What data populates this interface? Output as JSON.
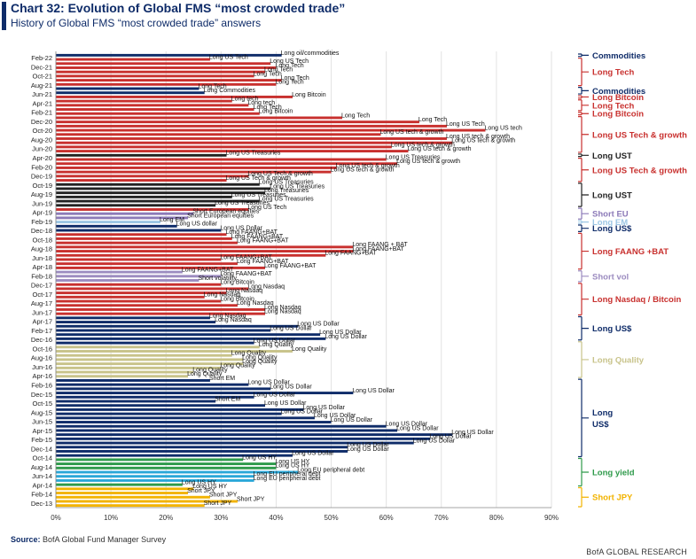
{
  "header": {
    "title": "Chart 32: Evolution of Global FMS “most crowded trade”",
    "subtitle": "History of Global FMS “most crowded trade” answers"
  },
  "footer": {
    "source_label": "Source:",
    "source_text": "BofA Global Fund Manager Survey",
    "brand": "BofA GLOBAL RESEARCH"
  },
  "colors": {
    "Commodities": "#0f2c69",
    "Long Tech": "#c8302e",
    "Long UST": "#222222",
    "Short EU": "#8c7ab8",
    "Long EM": "#9cc6e4",
    "Long US$": "#0f2c69",
    "Long FAANG+BAT": "#c8302e",
    "Short vol": "#9c8cc0",
    "Long Quality": "#c8c38a",
    "Long yield": "#2e9a4a",
    "Short JPY": "#f2b300",
    "EU debt": "#2aa7d8"
  },
  "chart_data": {
    "type": "bar",
    "orientation": "horizontal",
    "xlim": [
      0,
      90
    ],
    "x_ticks": [
      "0%",
      "10%",
      "20%",
      "30%",
      "40%",
      "50%",
      "60%",
      "70%",
      "80%",
      "90%"
    ],
    "y_ticks": [
      "Feb-22",
      "Dec-21",
      "Oct-21",
      "Aug-21",
      "Jun-21",
      "Apr-21",
      "Feb-21",
      "Dec-20",
      "Oct-20",
      "Aug-20",
      "Jun-20",
      "Apr-20",
      "Feb-20",
      "Dec-19",
      "Oct-19",
      "Aug-19",
      "Jun-19",
      "Apr-19",
      "Feb-19",
      "Dec-18",
      "Oct-18",
      "Aug-18",
      "Jun-18",
      "Apr-18",
      "Feb-18",
      "Dec-17",
      "Oct-17",
      "Aug-17",
      "Jun-17",
      "Apr-17",
      "Feb-17",
      "Dec-16",
      "Oct-16",
      "Aug-16",
      "Jun-16",
      "Apr-16",
      "Feb-16",
      "Dec-15",
      "Oct-15",
      "Aug-15",
      "Jun-15",
      "Apr-15",
      "Feb-15",
      "Dec-14",
      "Oct-14",
      "Aug-14",
      "Jun-14",
      "Apr-14",
      "Feb-14",
      "Dec-13"
    ],
    "bars": [
      {
        "v": 41,
        "l": "Long oil/commodities",
        "c": "Commodities"
      },
      {
        "v": 28,
        "l": "Long US Tech",
        "c": "Long Tech"
      },
      {
        "v": 39,
        "l": "Long US Tech",
        "c": "Long Tech"
      },
      {
        "v": 40,
        "l": "Long Tech",
        "c": "Long Tech"
      },
      {
        "v": 38,
        "l": "Long Tech",
        "c": "Long Tech"
      },
      {
        "v": 36,
        "l": "Long Tech",
        "c": "Long Tech"
      },
      {
        "v": 41,
        "l": "Long Tech",
        "c": "Long Tech"
      },
      {
        "v": 40,
        "l": "Long Tech",
        "c": "Long Tech"
      },
      {
        "v": 26,
        "l": "Long Tech",
        "c": "Commodities"
      },
      {
        "v": 27,
        "l": "Long Commodities",
        "c": "Commodities"
      },
      {
        "v": 43,
        "l": "Long Bitcoin",
        "c": "Long Tech"
      },
      {
        "v": 32,
        "l": "Long tech",
        "c": "Long Tech"
      },
      {
        "v": 35,
        "l": "Long tech",
        "c": "Long Tech"
      },
      {
        "v": 36,
        "l": "Long Tech",
        "c": "Long Tech"
      },
      {
        "v": 37,
        "l": "Long Bitcoin",
        "c": "Long Tech"
      },
      {
        "v": 52,
        "l": "Long Tech",
        "c": "Long Tech"
      },
      {
        "v": 66,
        "l": "Long Tech",
        "c": "Long Tech"
      },
      {
        "v": 71,
        "l": "Long US Tech",
        "c": "Long Tech"
      },
      {
        "v": 78,
        "l": "Long US tech",
        "c": "Long Tech"
      },
      {
        "v": 59,
        "l": "Long US tech & growth",
        "c": "Long Tech"
      },
      {
        "v": 71,
        "l": "Long US tech & growth",
        "c": "Long Tech"
      },
      {
        "v": 72,
        "l": "Long US tech & growth",
        "c": "Long Tech"
      },
      {
        "v": 61,
        "l": "Long US tech & growth",
        "c": "Long Tech"
      },
      {
        "v": 64,
        "l": "Long US tech & growth",
        "c": "Long Tech"
      },
      {
        "v": 31,
        "l": "Long US Treasuries",
        "c": "Long UST"
      },
      {
        "v": 60,
        "l": "Long US Treasuries",
        "c": "Long Tech"
      },
      {
        "v": 62,
        "l": "Long US tech & growth",
        "c": "Long Tech"
      },
      {
        "v": 51,
        "l": "Long US tech & growth",
        "c": "Long Tech"
      },
      {
        "v": 50,
        "l": "Long US tech & growth",
        "c": "Long Tech"
      },
      {
        "v": 35,
        "l": "Long US Tech & growth",
        "c": "Long Tech"
      },
      {
        "v": 31,
        "l": "Long US Tech & growth",
        "c": "Long Tech"
      },
      {
        "v": 37,
        "l": "Long US Treasuries",
        "c": "Long UST"
      },
      {
        "v": 39,
        "l": "Long US Treasuries",
        "c": "Long UST"
      },
      {
        "v": 38,
        "l": "Long Treasuries",
        "c": "Long UST"
      },
      {
        "v": 32,
        "l": "Long US Treasuries",
        "c": "Long UST"
      },
      {
        "v": 37,
        "l": "Long US Treasuries",
        "c": "Long UST"
      },
      {
        "v": 29,
        "l": "Long US Treasuries",
        "c": "Long UST"
      },
      {
        "v": 35,
        "l": "Long US Tech",
        "c": "Long Tech"
      },
      {
        "v": 25,
        "l": "Short European equities",
        "c": "Short EU"
      },
      {
        "v": 24,
        "l": "Short European equities",
        "c": "Short EU"
      },
      {
        "v": 19,
        "l": "Long EM",
        "c": "Long EM"
      },
      {
        "v": 22,
        "l": "Long US dollar",
        "c": "Long US$"
      },
      {
        "v": 30,
        "l": "Long US Dollar",
        "c": "Long US$"
      },
      {
        "v": 31,
        "l": "Long FAANG+BAT",
        "c": "Long FAANG+BAT"
      },
      {
        "v": 32,
        "l": "Long FAANG+BAT",
        "c": "Long FAANG+BAT"
      },
      {
        "v": 33,
        "l": "Long FAANG+BAT",
        "c": "Long FAANG+BAT"
      },
      {
        "v": 54,
        "l": "Long FAANG + BAT",
        "c": "Long FAANG+BAT"
      },
      {
        "v": 54,
        "l": "Long FAANG+BAT",
        "c": "Long FAANG+BAT"
      },
      {
        "v": 49,
        "l": "Long FAANG+BAT",
        "c": "Long FAANG+BAT"
      },
      {
        "v": 30,
        "l": "Long FAANG+BAT",
        "c": "Long FAANG+BAT"
      },
      {
        "v": 33,
        "l": "Long FAANG+BAT",
        "c": "Long FAANG+BAT"
      },
      {
        "v": 38,
        "l": "Long FAANG+BAT",
        "c": "Long FAANG+BAT"
      },
      {
        "v": 23,
        "l": "Long FAANG+BAT",
        "c": "Short vol"
      },
      {
        "v": 30,
        "l": "Long FAANG+BAT",
        "c": "Short vol"
      },
      {
        "v": 26,
        "l": "Short volatility",
        "c": "Short vol"
      },
      {
        "v": 30,
        "l": "Long Bitcoin",
        "c": "Long Tech"
      },
      {
        "v": 35,
        "l": "Long Nasdaq",
        "c": "Long Tech"
      },
      {
        "v": 31,
        "l": "Long Nasdaq",
        "c": "Long Tech"
      },
      {
        "v": 27,
        "l": "Long Nasdaq",
        "c": "Long Tech"
      },
      {
        "v": 30,
        "l": "Long Bitcoin",
        "c": "Long Tech"
      },
      {
        "v": 33,
        "l": "Long Nasdaq",
        "c": "Long Tech"
      },
      {
        "v": 38,
        "l": "Long Nasdaq",
        "c": "Long Tech"
      },
      {
        "v": 38,
        "l": "Long Nasdaq",
        "c": "Long Tech"
      },
      {
        "v": 28,
        "l": "Long Nasdaq",
        "c": "Long US$"
      },
      {
        "v": 29,
        "l": "Long Nasdaq",
        "c": "Long US$"
      },
      {
        "v": 44,
        "l": "Long US Dollar",
        "c": "Long US$"
      },
      {
        "v": 39,
        "l": "Long US Dollar",
        "c": "Long US$"
      },
      {
        "v": 48,
        "l": "Long US Dollar",
        "c": "Long US$"
      },
      {
        "v": 49,
        "l": "Long US Dollar",
        "c": "Long US$"
      },
      {
        "v": 36,
        "l": "Long US Dollar",
        "c": "Long US$"
      },
      {
        "v": 37,
        "l": "Long Quality",
        "c": "Long Quality"
      },
      {
        "v": 43,
        "l": "Long Quality",
        "c": "Long Quality"
      },
      {
        "v": 32,
        "l": "Long Quality",
        "c": "Long Quality"
      },
      {
        "v": 34,
        "l": "Long Quality",
        "c": "Long Quality"
      },
      {
        "v": 34,
        "l": "Long Quality",
        "c": "Long Quality"
      },
      {
        "v": 30,
        "l": "Long Quality",
        "c": "Long Quality"
      },
      {
        "v": 25,
        "l": "Long Quality",
        "c": "Long Quality"
      },
      {
        "v": 24,
        "l": "Long Quality",
        "c": "Long Quality"
      },
      {
        "v": 28,
        "l": "Short EM",
        "c": "Long US$"
      },
      {
        "v": 35,
        "l": "Long US Dollar",
        "c": "Long US$"
      },
      {
        "v": 39,
        "l": "Long US Dollar",
        "c": "Long US$"
      },
      {
        "v": 54,
        "l": "Long US Dollar",
        "c": "Long US$"
      },
      {
        "v": 36,
        "l": "Long US Dollar",
        "c": "Long US$"
      },
      {
        "v": 29,
        "l": "Short EM",
        "c": "Long US$"
      },
      {
        "v": 38,
        "l": "Long US Dollar",
        "c": "Long US$"
      },
      {
        "v": 45,
        "l": "Long US Dollar",
        "c": "Long US$"
      },
      {
        "v": 41,
        "l": "Long US Dollar",
        "c": "Long US$"
      },
      {
        "v": 47,
        "l": "Long US Dollar",
        "c": "Long US$"
      },
      {
        "v": 50,
        "l": "Long US Dollar",
        "c": "Long US$"
      },
      {
        "v": 60,
        "l": "Long US Dollar",
        "c": "Long US$"
      },
      {
        "v": 62,
        "l": "Long US Dollar",
        "c": "Long US$"
      },
      {
        "v": 72,
        "l": "Long US Dollar",
        "c": "Long US$"
      },
      {
        "v": 68,
        "l": "Long US Dollar",
        "c": "Long US$"
      },
      {
        "v": 65,
        "l": "Long US Dollar",
        "c": "Long US$"
      },
      {
        "v": 53,
        "l": "Long US Dollar",
        "c": "Long US$"
      },
      {
        "v": 53,
        "l": "Long US Dollar",
        "c": "Long US$"
      },
      {
        "v": 43,
        "l": "Long US Dollar",
        "c": "Long US$"
      },
      {
        "v": 34,
        "l": "Long US HY",
        "c": "Long yield"
      },
      {
        "v": 40,
        "l": "Long US HY",
        "c": "Long yield"
      },
      {
        "v": 40,
        "l": "Long US HY",
        "c": "Long yield"
      },
      {
        "v": 44,
        "l": "Long EU peripheral debt",
        "c": "EU debt"
      },
      {
        "v": 36,
        "l": "Long EU peripheral debt",
        "c": "EU debt"
      },
      {
        "v": 36,
        "l": "Long EU peripheral debt",
        "c": "EU debt"
      },
      {
        "v": 23,
        "l": "Long US HY",
        "c": "Long yield"
      },
      {
        "v": 25,
        "l": "Long US HY",
        "c": "Short JPY"
      },
      {
        "v": 24,
        "l": "Short JPY",
        "c": "Short JPY"
      },
      {
        "v": 28,
        "l": "Short JPY",
        "c": "Short JPY"
      },
      {
        "v": 33,
        "l": "Short JPY",
        "c": "Short JPY"
      },
      {
        "v": 27,
        "l": "Short JPY",
        "c": "Short JPY"
      }
    ],
    "legend": [
      {
        "label": "Commodities",
        "c": "Commodities",
        "from": 0,
        "to": 0
      },
      {
        "label": "Long Tech",
        "c": "Long Tech",
        "from": 1,
        "to": 7
      },
      {
        "label": "Commodities",
        "c": "Commodities",
        "from": 8,
        "to": 9
      },
      {
        "label": "Long Bitcoin",
        "c": "Long Tech",
        "from": 10,
        "to": 10
      },
      {
        "label": "Long Tech",
        "c": "Long Tech",
        "from": 11,
        "to": 13
      },
      {
        "label": "Long Bitcoin",
        "c": "Long Tech",
        "from": 14,
        "to": 14
      },
      {
        "label": "Long US Tech & growth",
        "c": "Long Tech",
        "from": 15,
        "to": 23
      },
      {
        "label": "Long UST",
        "c": "Long UST",
        "from": 24,
        "to": 24
      },
      {
        "label": "Long US Tech & growth",
        "c": "Long Tech",
        "from": 25,
        "to": 30
      },
      {
        "label": "Long UST",
        "c": "Long UST",
        "from": 31,
        "to": 36
      },
      {
        "label": "Short EU",
        "c": "Short EU",
        "from": 37,
        "to": 39
      },
      {
        "label": "Long EM",
        "c": "Long EM",
        "from": 40,
        "to": 40
      },
      {
        "label": "Long US$",
        "c": "Long US$",
        "from": 41,
        "to": 42
      },
      {
        "label": "Long FAANG +BAT",
        "c": "Long FAANG+BAT",
        "from": 43,
        "to": 51
      },
      {
        "label": "Short vol",
        "c": "Short vol",
        "from": 52,
        "to": 54
      },
      {
        "label": "Long Nasdaq / Bitcoin",
        "c": "Long Tech",
        "from": 55,
        "to": 62
      },
      {
        "label": "Long US$",
        "c": "Long US$",
        "from": 63,
        "to": 68
      },
      {
        "label": "Long Quality",
        "c": "Long Quality",
        "from": 69,
        "to": 77
      },
      {
        "label": "Long US$",
        "c": "Long US$",
        "from": 78,
        "to": 96
      },
      {
        "label": "Long yield",
        "c": "Long yield",
        "from": 97,
        "to": 103
      },
      {
        "label": "Short JPY",
        "c": "Short JPY",
        "from": 104,
        "to": 108
      }
    ]
  }
}
